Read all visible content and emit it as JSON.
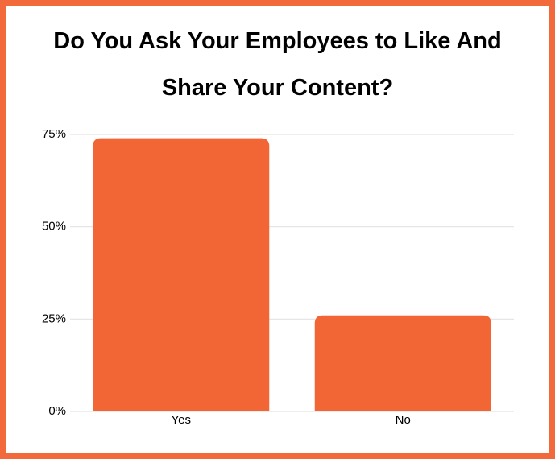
{
  "chart_data": {
    "type": "bar",
    "title": "Do You Ask Your Employees to Like And Share Your Content?",
    "categories": [
      "Yes",
      "No"
    ],
    "values": [
      74,
      26
    ],
    "color": "#f26535",
    "ylim": [
      0,
      75
    ],
    "yticks": [
      {
        "value": 0,
        "label": "0%"
      },
      {
        "value": 25,
        "label": "25%"
      },
      {
        "value": 50,
        "label": "50%"
      },
      {
        "value": 75,
        "label": "75%"
      }
    ],
    "grid": true
  }
}
